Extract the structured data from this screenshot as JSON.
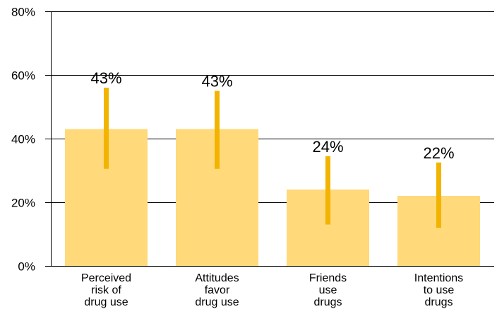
{
  "chart_data": {
    "type": "bar",
    "categories": [
      [
        "Perceived",
        "risk of",
        "drug use"
      ],
      [
        "Attitudes",
        "favor",
        "drug use"
      ],
      [
        "Friends",
        "use",
        "drugs"
      ],
      [
        "Intentions",
        "to use",
        "drugs"
      ]
    ],
    "values": [
      43,
      43,
      24,
      22
    ],
    "error_low": [
      30.5,
      30.5,
      13,
      12
    ],
    "error_high": [
      56,
      55,
      34.5,
      32.5
    ],
    "data_labels": [
      "43%",
      "43%",
      "24%",
      "22%"
    ],
    "yticks": [
      0,
      20,
      40,
      60,
      80
    ],
    "ytick_labels": [
      "0%",
      "20%",
      "40%",
      "60%",
      "80%"
    ],
    "ylim": [
      0,
      80
    ],
    "grid": true,
    "colors": {
      "bar": "#FFD97A",
      "error": "#F2B400",
      "axis": "#000000"
    }
  }
}
